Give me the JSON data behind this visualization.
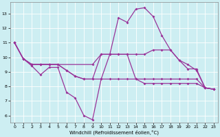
{
  "xlabel": "Windchill (Refroidissement éolien,°C)",
  "background_color": "#cdeef2",
  "line_color": "#993399",
  "xlim": [
    -0.5,
    23.5
  ],
  "ylim": [
    5.5,
    13.8
  ],
  "yticks": [
    6,
    7,
    8,
    9,
    10,
    11,
    12,
    13
  ],
  "xticks": [
    0,
    1,
    2,
    3,
    4,
    5,
    6,
    7,
    8,
    9,
    10,
    11,
    12,
    13,
    14,
    15,
    16,
    17,
    18,
    19,
    20,
    21,
    22,
    23
  ],
  "series": [
    {
      "x": [
        0,
        1,
        2,
        3,
        4,
        5,
        6,
        7,
        8,
        9,
        10,
        11,
        12,
        13,
        14,
        15,
        16,
        17,
        18,
        19,
        20,
        21,
        22,
        23
      ],
      "y": [
        11.0,
        9.9,
        9.4,
        8.8,
        9.3,
        9.3,
        7.6,
        7.2,
        6.0,
        5.7,
        8.5,
        10.2,
        12.7,
        12.4,
        13.3,
        13.4,
        12.8,
        11.5,
        10.5,
        9.8,
        9.2,
        9.2,
        7.9,
        7.8
      ]
    },
    {
      "x": [
        0,
        1,
        2,
        3,
        4,
        9,
        10,
        11,
        12,
        13,
        14,
        15,
        16,
        17,
        18,
        19,
        20,
        21,
        22,
        23
      ],
      "y": [
        11.0,
        9.9,
        9.5,
        9.5,
        9.5,
        9.5,
        10.2,
        10.2,
        10.2,
        10.2,
        10.2,
        10.2,
        10.5,
        10.5,
        10.5,
        9.8,
        9.5,
        9.1,
        7.9,
        7.8
      ]
    },
    {
      "x": [
        0,
        1,
        2,
        3,
        4,
        5,
        6,
        7,
        8,
        9,
        10,
        11,
        12,
        13,
        14,
        15,
        16,
        17,
        18,
        19,
        20,
        21,
        22,
        23
      ],
      "y": [
        11.0,
        9.9,
        9.5,
        9.5,
        9.5,
        9.5,
        9.1,
        8.7,
        8.5,
        8.5,
        10.2,
        10.2,
        10.2,
        10.2,
        8.5,
        8.5,
        8.5,
        8.5,
        8.5,
        8.5,
        8.5,
        8.5,
        7.9,
        7.8
      ]
    },
    {
      "x": [
        0,
        1,
        2,
        3,
        4,
        5,
        6,
        7,
        8,
        9,
        10,
        11,
        12,
        13,
        14,
        15,
        16,
        17,
        18,
        19,
        20,
        21,
        22,
        23
      ],
      "y": [
        11.0,
        9.9,
        9.5,
        9.5,
        9.5,
        9.5,
        9.1,
        8.7,
        8.5,
        8.5,
        8.5,
        8.5,
        8.5,
        8.5,
        8.5,
        8.2,
        8.2,
        8.2,
        8.2,
        8.2,
        8.2,
        8.2,
        7.9,
        7.8
      ]
    }
  ]
}
